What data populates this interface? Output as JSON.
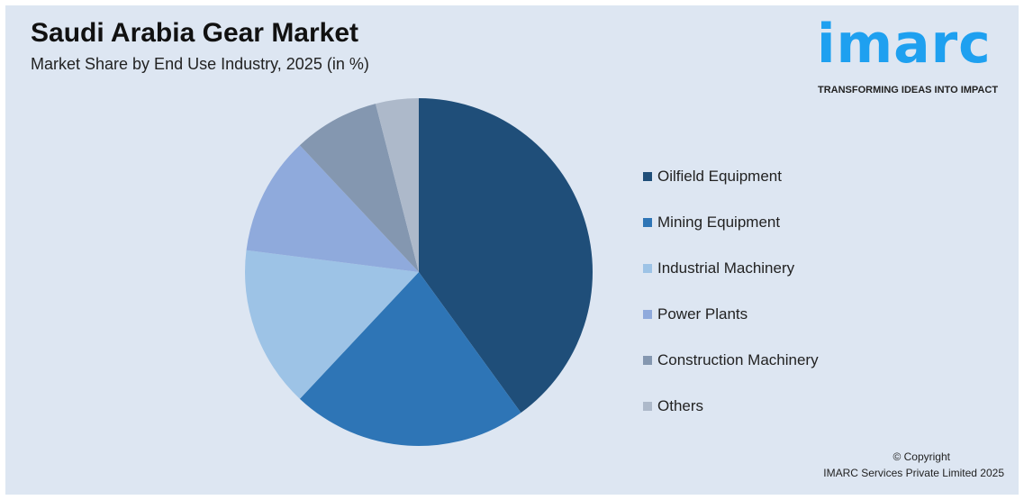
{
  "title": "Saudi Arabia Gear Market",
  "subtitle": "Market Share by End Use Industry, 2025 (in %)",
  "logo": {
    "text": "imarc",
    "tagline": "TRANSFORMING IDEAS INTO IMPACT",
    "color": "#1ea0f0"
  },
  "copyright": {
    "line1": "© Copyright",
    "line2": "IMARC Services Private Limited 2025"
  },
  "chart_data": {
    "type": "pie",
    "title": "Saudi Arabia Gear Market",
    "subtitle": "Market Share by End Use Industry, 2025 (in %)",
    "legend_position": "right",
    "start_angle": "top, clockwise",
    "categories": [
      "Oilfield Equipment",
      "Mining Equipment",
      "Industrial Machinery",
      "Power Plants",
      "Construction Machinery",
      "Others"
    ],
    "values": [
      40,
      22,
      15,
      11,
      8,
      4
    ],
    "colors": [
      "#1f4e79",
      "#2e75b6",
      "#9dc3e6",
      "#8faadc",
      "#8497b0",
      "#adb9ca"
    ]
  }
}
